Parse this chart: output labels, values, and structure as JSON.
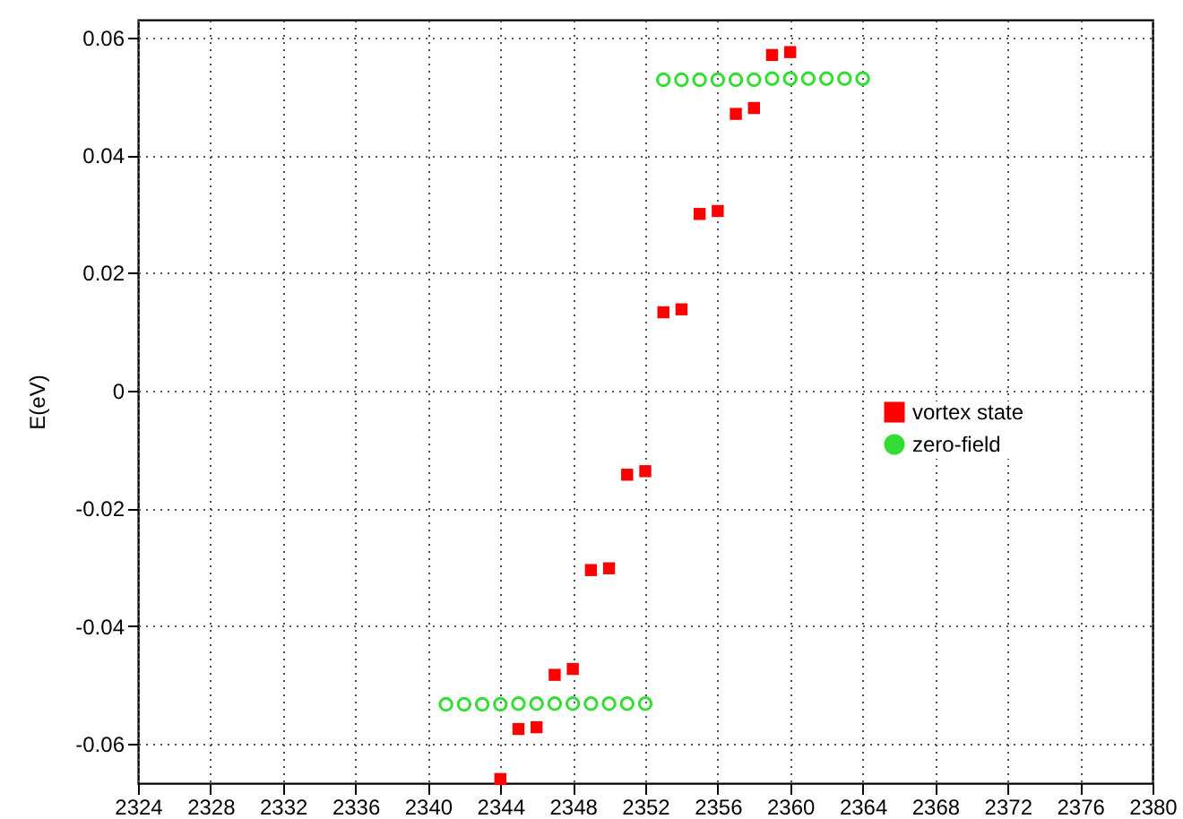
{
  "chart_data": {
    "type": "scatter",
    "ylabel": "E(eV)",
    "xlim": [
      2324,
      2380
    ],
    "ylim": [
      -0.0667,
      0.063
    ],
    "xticks": [
      2324,
      2328,
      2332,
      2336,
      2340,
      2344,
      2348,
      2352,
      2356,
      2360,
      2364,
      2368,
      2372,
      2376,
      2380
    ],
    "yticks": [
      -0.06,
      -0.04,
      -0.02,
      0,
      0.02,
      0.04,
      0.06
    ],
    "grid": true,
    "legend": "right",
    "series": [
      {
        "name": "vortex state",
        "color": "#ff0000",
        "marker": "square",
        "x": [
          2344,
          2345,
          2346,
          2347,
          2348,
          2349,
          2350,
          2351,
          2352,
          2353,
          2354,
          2355,
          2356,
          2357,
          2358,
          2359,
          2360
        ],
        "values": [
          -0.066,
          -0.0575,
          -0.0572,
          -0.0483,
          -0.0473,
          -0.0305,
          -0.0302,
          -0.0143,
          -0.0137,
          0.0133,
          0.0138,
          0.03,
          0.0305,
          0.047,
          0.048,
          0.057,
          0.0575
        ]
      },
      {
        "name": "zero-field",
        "color": "#33dd33",
        "marker": "circle",
        "x": [
          2341,
          2342,
          2343,
          2344,
          2345,
          2346,
          2347,
          2348,
          2349,
          2350,
          2351,
          2352,
          2353,
          2354,
          2355,
          2356,
          2357,
          2358,
          2359,
          2360,
          2361,
          2362,
          2363,
          2364
        ],
        "values": [
          -0.0533,
          -0.0533,
          -0.0533,
          -0.0533,
          -0.0532,
          -0.0532,
          -0.0532,
          -0.0532,
          -0.0532,
          -0.0532,
          -0.0532,
          -0.0532,
          0.0528,
          0.0528,
          0.0528,
          0.0528,
          0.0528,
          0.0528,
          0.053,
          0.053,
          0.053,
          0.053,
          0.053,
          0.053
        ]
      }
    ]
  }
}
